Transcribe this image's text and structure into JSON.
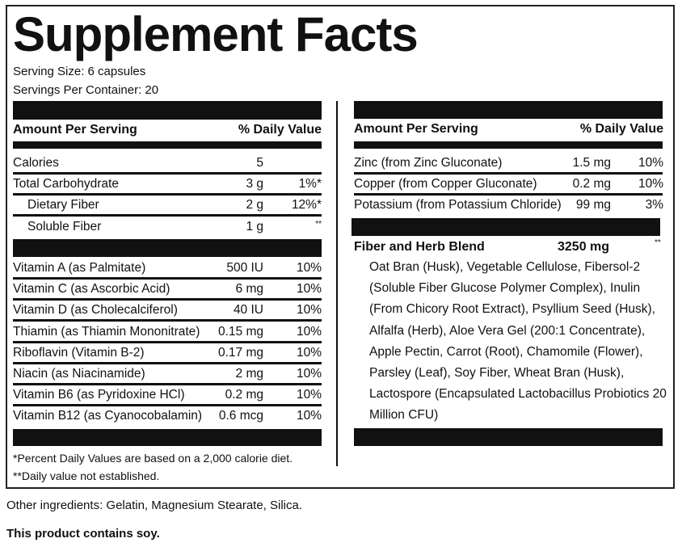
{
  "title": "Supplement Facts",
  "serving_size": "Serving Size: 6 capsules",
  "servings_per_container": "Servings Per Container: 20",
  "left": {
    "header_amount": "Amount Per Serving",
    "header_dv": "% Daily Value",
    "group1": [
      {
        "name": "Calories",
        "amount": "5",
        "dv": ""
      },
      {
        "name": "Total Carbohydrate",
        "amount": "3 g",
        "dv": "1%*"
      },
      {
        "name": "Dietary Fiber",
        "amount": "2 g",
        "dv": "12%*",
        "indent": true
      },
      {
        "name": "Soluble Fiber",
        "amount": "1 g",
        "dv": "**",
        "indent": true
      }
    ],
    "group2": [
      {
        "name": "Vitamin A (as Palmitate)",
        "amount": "500 IU",
        "dv": "10%"
      },
      {
        "name": "Vitamin C (as Ascorbic Acid)",
        "amount": "6 mg",
        "dv": "10%"
      },
      {
        "name": "Vitamin D (as Cholecalciferol)",
        "amount": "40 IU",
        "dv": "10%"
      },
      {
        "name": "Thiamin (as Thiamin Mononitrate)",
        "amount": "0.15 mg",
        "dv": "10%"
      },
      {
        "name": "Riboflavin (Vitamin B-2)",
        "amount": "0.17 mg",
        "dv": "10%"
      },
      {
        "name": "Niacin (as Niacinamide)",
        "amount": "2 mg",
        "dv": "10%"
      },
      {
        "name": "Vitamin B6 (as Pyridoxine HCl)",
        "amount": "0.2 mg",
        "dv": "10%"
      },
      {
        "name": "Vitamin B12 (as Cyanocobalamin)",
        "amount": "0.6 mcg",
        "dv": "10%"
      }
    ],
    "footnote1": "*Percent Daily Values are based on a 2,000 calorie diet.",
    "footnote2": "**Daily value not established."
  },
  "right": {
    "header_amount": "Amount Per Serving",
    "header_dv": "% Daily Value",
    "group1": [
      {
        "name": "Zinc (from Zinc Gluconate)",
        "amount": "1.5 mg",
        "dv": "10%"
      },
      {
        "name": "Copper (from Copper Gluconate)",
        "amount": "0.2 mg",
        "dv": "10%"
      },
      {
        "name": "Potassium (from Potassium Chloride)",
        "amount": "99 mg",
        "dv": "3%"
      }
    ],
    "blend": {
      "name": "Fiber and Herb Blend",
      "amount": "3250 mg",
      "dv": "**",
      "ingredients": "Oat Bran (Husk), Vegetable Cellulose, Fibersol-2 (Soluble Fiber Glucose Polymer Complex), Inulin (From Chicory Root Extract), Psyllium Seed (Husk), Alfalfa (Herb), Aloe Vera Gel (200:1 Concentrate), Apple Pectin, Carrot (Root), Chamomile (Flower), Parsley (Leaf), Soy Fiber, Wheat Bran (Husk), Lactospore (Encapsulated Lactobacillus Probiotics 20 Million CFU)"
    }
  },
  "other_ingredients": "Other ingredients: Gelatin, Magnesium Stearate, Silica.",
  "allergen": "This product contains soy."
}
